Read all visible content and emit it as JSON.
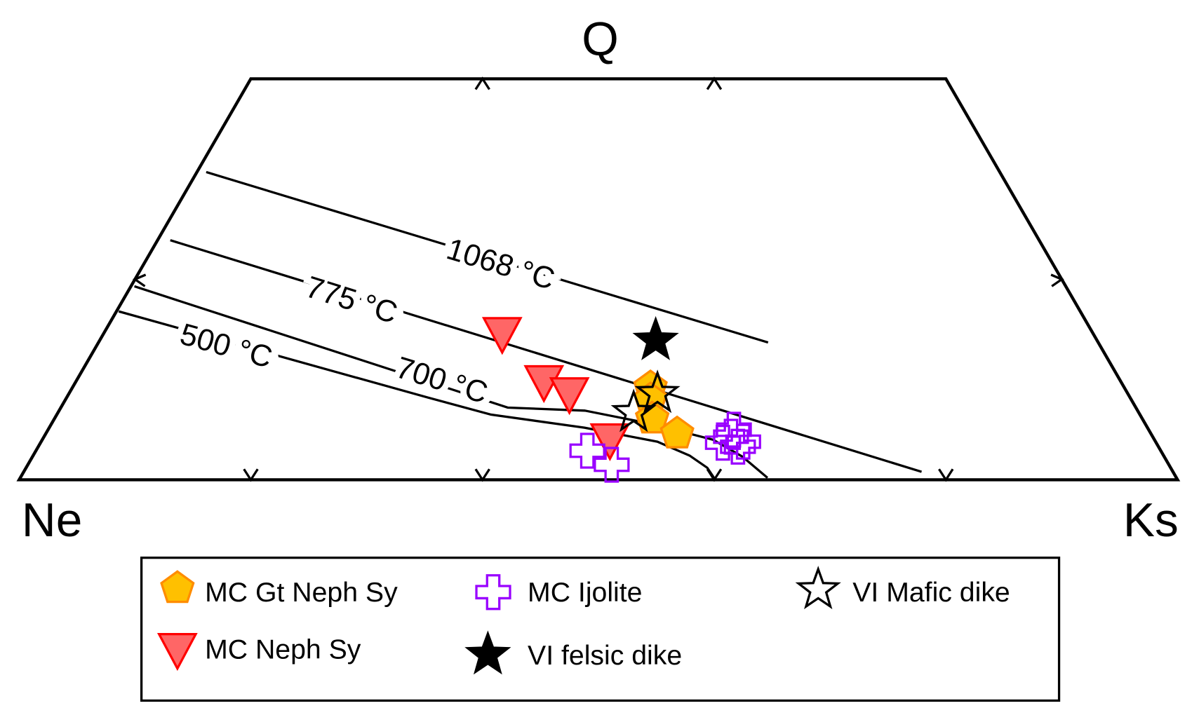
{
  "chart_data": {
    "type": "scatter",
    "subtype": "ternary",
    "title": "",
    "apex_labels": {
      "top": "Q",
      "left": "Ne",
      "right": "Ks"
    },
    "q_range_shown": [
      0,
      0.4
    ],
    "grid_ticks_fraction": [
      0.2,
      0.4,
      0.6,
      0.8
    ],
    "isotherms": [
      {
        "label": "1068 °C",
        "points_ks_q": [
          [
            0.008,
            0.307
          ],
          [
            0.578,
            0.137
          ]
        ]
      },
      {
        "label": "775 °C",
        "points_ks_q": [
          [
            0.011,
            0.239
          ],
          [
            0.775,
            0.008
          ]
        ]
      },
      {
        "label": "700 °C",
        "points_ks_q": [
          [
            0.003,
            0.193
          ],
          [
            0.386,
            0.072
          ],
          [
            0.454,
            0.069
          ],
          [
            0.517,
            0.056
          ],
          [
            0.579,
            0.04
          ],
          [
            0.613,
            0.023
          ],
          [
            0.645,
            0.002
          ]
        ]
      },
      {
        "label": "500 °C",
        "points_ks_q": [
          [
            0.002,
            0.168
          ],
          [
            0.312,
            0.082
          ],
          [
            0.375,
            0.065
          ],
          [
            0.462,
            0.052
          ],
          [
            0.532,
            0.038
          ],
          [
            0.567,
            0.024
          ],
          [
            0.588,
            0.012
          ],
          [
            0.601,
            0.0
          ]
        ]
      }
    ],
    "series": [
      {
        "name": "MC Gt Neph Sy",
        "marker": "pentagon",
        "fill": "#FFC000",
        "stroke": "#FF8C00",
        "points_ks_q": [
          [
            0.499,
            0.092
          ],
          [
            0.505,
            0.08
          ],
          [
            0.516,
            0.061
          ],
          [
            0.545,
            0.046
          ]
        ]
      },
      {
        "name": "MC Neph Sy",
        "marker": "triangle-down",
        "fill": "#FF6666",
        "stroke": "#FF0000",
        "points_ks_q": [
          [
            0.344,
            0.146
          ],
          [
            0.404,
            0.098
          ],
          [
            0.432,
            0.086
          ],
          [
            0.49,
            0.04
          ]
        ]
      },
      {
        "name": "MC Ijolite",
        "marker": "cross-open",
        "fill": "none",
        "stroke": "#9900FF",
        "points_ks_q": [
          [
            0.476,
            0.029
          ],
          [
            0.504,
            0.015
          ],
          [
            0.589,
            0.037
          ],
          [
            0.592,
            0.05
          ],
          [
            0.604,
            0.033
          ],
          [
            0.593,
            0.043
          ],
          [
            0.606,
            0.038
          ]
        ]
      },
      {
        "name": "VI felsic dike",
        "marker": "star-filled",
        "fill": "#000000",
        "stroke": "#000000",
        "points_ks_q": [
          [
            0.48,
            0.139
          ]
        ]
      },
      {
        "name": "VI Mafic dike",
        "marker": "star-open",
        "fill": "#FFFFFF",
        "stroke": "#000000",
        "points_ks_q": [
          [
            0.508,
            0.086
          ],
          [
            0.497,
            0.067
          ]
        ]
      }
    ],
    "legend_position": "bottom"
  }
}
